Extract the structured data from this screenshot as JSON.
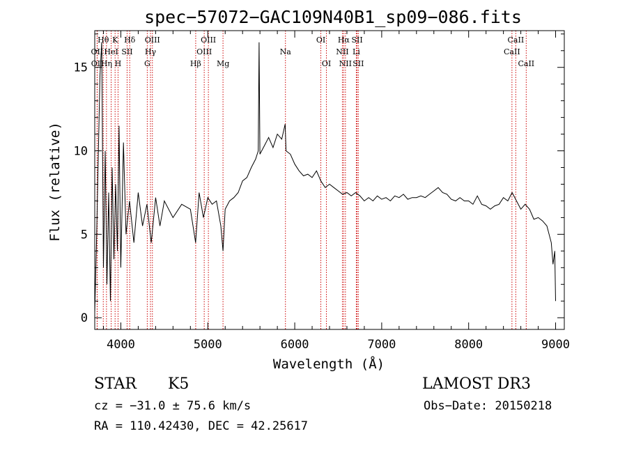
{
  "chart_data": {
    "type": "line",
    "title": "spec−57072−GAC109N40B1_sp09−086.fits",
    "xlabel": "Wavelength (Å)",
    "ylabel": "Flux (relative)",
    "xlim": [
      3700,
      9100
    ],
    "ylim": [
      -0.7,
      17.2
    ],
    "xticks": [
      4000,
      5000,
      6000,
      7000,
      8000,
      9000
    ],
    "xtick_labels": [
      "4000",
      "5000",
      "6000",
      "7000",
      "8000",
      "9000"
    ],
    "yticks": [
      0,
      5,
      10,
      15
    ],
    "ytick_labels": [
      "0",
      "5",
      "10",
      "15"
    ],
    "grid": false,
    "series": [
      {
        "name": "flux",
        "x": [
          3700,
          3720,
          3740,
          3760,
          3780,
          3800,
          3820,
          3840,
          3860,
          3880,
          3900,
          3920,
          3940,
          3960,
          3980,
          4000,
          4030,
          4060,
          4100,
          4150,
          4200,
          4250,
          4300,
          4350,
          4400,
          4450,
          4500,
          4600,
          4700,
          4800,
          4860,
          4900,
          4950,
          5000,
          5050,
          5100,
          5150,
          5175,
          5200,
          5250,
          5300,
          5350,
          5400,
          5450,
          5500,
          5550,
          5580,
          5590,
          5600,
          5650,
          5700,
          5750,
          5800,
          5850,
          5890,
          5900,
          5950,
          6000,
          6050,
          6100,
          6150,
          6200,
          6250,
          6300,
          6350,
          6400,
          6450,
          6500,
          6550,
          6600,
          6650,
          6700,
          6750,
          6800,
          6850,
          6900,
          6950,
          7000,
          7050,
          7100,
          7150,
          7200,
          7250,
          7300,
          7350,
          7400,
          7450,
          7500,
          7550,
          7600,
          7650,
          7700,
          7750,
          7800,
          7850,
          7900,
          7950,
          8000,
          8050,
          8100,
          8150,
          8200,
          8250,
          8300,
          8350,
          8400,
          8450,
          8500,
          8550,
          8600,
          8650,
          8700,
          8750,
          8800,
          8850,
          8900,
          8950,
          8970,
          8990,
          9000
        ],
        "values": [
          0.3,
          4.5,
          9.5,
          14.5,
          16.5,
          3.0,
          10.0,
          2.0,
          7.5,
          1.0,
          9.0,
          3.5,
          8.0,
          4.0,
          11.5,
          3.0,
          10.5,
          5.0,
          7.0,
          4.5,
          7.5,
          5.5,
          6.8,
          4.5,
          7.2,
          5.5,
          7.0,
          6.0,
          6.8,
          6.5,
          4.5,
          7.5,
          6.0,
          7.2,
          6.8,
          7.0,
          5.5,
          4.0,
          6.5,
          7.0,
          7.2,
          7.5,
          8.2,
          8.4,
          9.0,
          9.5,
          10.0,
          16.5,
          9.8,
          10.3,
          10.8,
          10.2,
          11.0,
          10.7,
          11.6,
          10.0,
          9.8,
          9.2,
          8.8,
          8.5,
          8.6,
          8.4,
          8.8,
          8.2,
          7.8,
          8.0,
          7.8,
          7.6,
          7.4,
          7.5,
          7.3,
          7.5,
          7.3,
          7.0,
          7.2,
          7.0,
          7.3,
          7.1,
          7.2,
          7.0,
          7.3,
          7.2,
          7.4,
          7.1,
          7.2,
          7.2,
          7.3,
          7.2,
          7.4,
          7.6,
          7.8,
          7.5,
          7.4,
          7.1,
          7.0,
          7.2,
          7.0,
          7.0,
          6.8,
          7.3,
          6.8,
          6.7,
          6.5,
          6.7,
          6.8,
          7.2,
          7.0,
          7.5,
          7.0,
          6.5,
          6.8,
          6.5,
          5.9,
          6.0,
          5.8,
          5.5,
          4.5,
          3.2,
          4.0,
          1.0
        ]
      }
    ],
    "line_labels": [
      {
        "text": "Hθ",
        "x": 3798,
        "row": 1,
        "color": "#cc0000"
      },
      {
        "text": "K",
        "x": 3934,
        "row": 1,
        "color": "#cc0000"
      },
      {
        "text": "Hδ",
        "x": 4102,
        "row": 1,
        "color": "#cc0000"
      },
      {
        "text": "OIII",
        "x": 4363,
        "row": 1,
        "color": "#cc0000"
      },
      {
        "text": "OIII",
        "x": 5007,
        "row": 1,
        "color": "#cc0000"
      },
      {
        "text": "OI",
        "x": 6300,
        "row": 1,
        "color": "#cc0000"
      },
      {
        "text": "Hα",
        "x": 6563,
        "row": 1,
        "color": "#cc0000"
      },
      {
        "text": "SII",
        "x": 6717,
        "row": 1,
        "color": "#cc0000"
      },
      {
        "text": "CaII",
        "x": 8542,
        "row": 1,
        "color": "#cc0000"
      },
      {
        "text": "OII",
        "x": 3727,
        "row": 2,
        "color": "#cc0000"
      },
      {
        "text": "HeI",
        "x": 3889,
        "row": 2,
        "color": "#cc0000"
      },
      {
        "text": "SII",
        "x": 4072,
        "row": 2,
        "color": "#cc0000"
      },
      {
        "text": "Hγ",
        "x": 4341,
        "row": 2,
        "color": "#cc0000"
      },
      {
        "text": "OIII",
        "x": 4959,
        "row": 2,
        "color": "#cc0000"
      },
      {
        "text": "Na",
        "x": 5893,
        "row": 2,
        "color": "#cc0000"
      },
      {
        "text": "NII",
        "x": 6548,
        "row": 2,
        "color": "#cc0000"
      },
      {
        "text": "Li",
        "x": 6708,
        "row": 2,
        "color": "#cc0000"
      },
      {
        "text": "CaII",
        "x": 8498,
        "row": 2,
        "color": "#cc0000"
      },
      {
        "text": "OII",
        "x": 3729,
        "row": 3,
        "color": "#cc0000"
      },
      {
        "text": "Hη",
        "x": 3835,
        "row": 3,
        "color": "#cc0000"
      },
      {
        "text": "H",
        "x": 3968,
        "row": 3,
        "color": "#cc0000"
      },
      {
        "text": "G",
        "x": 4304,
        "row": 3,
        "color": "#cc0000"
      },
      {
        "text": "Hβ",
        "x": 4861,
        "row": 3,
        "color": "#cc0000"
      },
      {
        "text": "Mg",
        "x": 5175,
        "row": 3,
        "color": "#cc0000"
      },
      {
        "text": "OI",
        "x": 6364,
        "row": 3,
        "color": "#cc0000"
      },
      {
        "text": "NII",
        "x": 6583,
        "row": 3,
        "color": "#cc0000"
      },
      {
        "text": "SII",
        "x": 6731,
        "row": 3,
        "color": "#cc0000"
      },
      {
        "text": "CaII",
        "x": 8662,
        "row": 3,
        "color": "#cc0000"
      }
    ],
    "line_color": "#000000",
    "marker_color": "#cc0000"
  },
  "info": {
    "class_label": "STAR",
    "subclass": "K5",
    "cz": "cz = −31.0 ± 75.6 km/s",
    "coords": "RA = 110.42430, DEC =  42.25617",
    "survey": "LAMOST DR3",
    "obs_date": "Obs−Date: 20150218"
  }
}
